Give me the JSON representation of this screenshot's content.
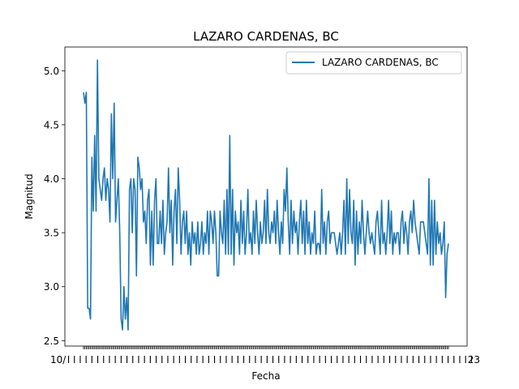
{
  "chart_data": {
    "type": "line",
    "title": "LAZARO CARDENAS, BC",
    "xlabel": "Fecha",
    "ylabel": "Magnitud",
    "ylim": [
      2.45,
      5.22
    ],
    "yticks": [
      "2.5",
      "3.0",
      "3.5",
      "4.0",
      "4.5",
      "5.0"
    ],
    "ytick_values": [
      2.5,
      3.0,
      3.5,
      4.0,
      4.5,
      5.0
    ],
    "xtick_left_label": "10/",
    "xtick_right_label": "23",
    "grid": false,
    "legend_position": "top-right",
    "colors": {
      "series": "#1f77b4"
    },
    "series": [
      {
        "name": "LAZARO CARDENAS, BC",
        "values": [
          4.8,
          4.7,
          4.8,
          2.8,
          2.8,
          2.7,
          4.2,
          3.7,
          4.4,
          3.7,
          5.1,
          4.0,
          3.9,
          3.8,
          4.0,
          4.1,
          3.8,
          4.0,
          3.9,
          3.6,
          4.6,
          4.0,
          4.7,
          3.6,
          3.8,
          4.0,
          3.5,
          2.7,
          2.6,
          3.0,
          2.7,
          2.9,
          2.6,
          3.9,
          4.0,
          3.5,
          4.0,
          3.9,
          3.1,
          4.2,
          4.1,
          3.9,
          4.0,
          3.6,
          3.7,
          3.4,
          3.8,
          3.9,
          3.2,
          3.7,
          3.2,
          3.8,
          4.0,
          3.4,
          3.4,
          3.7,
          3.4,
          3.8,
          3.3,
          3.5,
          3.6,
          4.1,
          3.5,
          3.8,
          3.2,
          3.7,
          3.9,
          3.4,
          4.1,
          3.8,
          3.3,
          3.6,
          3.7,
          3.4,
          3.7,
          3.3,
          3.5,
          3.2,
          3.6,
          3.4,
          3.5,
          3.3,
          3.6,
          3.3,
          3.4,
          3.6,
          3.3,
          3.5,
          3.4,
          3.7,
          3.3,
          3.7,
          3.6,
          3.4,
          3.7,
          3.5,
          3.1,
          3.1,
          3.7,
          3.5,
          3.4,
          3.8,
          3.3,
          3.9,
          3.3,
          4.4,
          3.3,
          3.9,
          3.2,
          3.7,
          3.5,
          3.6,
          3.3,
          3.8,
          3.4,
          3.7,
          3.3,
          3.5,
          3.9,
          3.4,
          3.5,
          3.3,
          3.7,
          3.4,
          3.8,
          3.5,
          3.3,
          3.6,
          3.4,
          3.5,
          3.8,
          3.4,
          3.9,
          3.5,
          3.4,
          3.6,
          3.5,
          3.7,
          3.4,
          3.8,
          3.5,
          3.3,
          3.6,
          3.4,
          3.9,
          3.7,
          4.1,
          3.6,
          3.3,
          3.8,
          3.4,
          3.7,
          3.5,
          3.6,
          3.3,
          3.6,
          3.8,
          3.4,
          3.7,
          3.3,
          3.8,
          3.4,
          3.6,
          3.3,
          3.5,
          3.4,
          3.7,
          3.3,
          3.4,
          3.4,
          3.3,
          3.9,
          3.4,
          3.6,
          3.3,
          3.6,
          3.7,
          3.4,
          3.5,
          3.5,
          3.5,
          3.4,
          3.3,
          3.4,
          3.5,
          3.3,
          3.5,
          3.8,
          3.3,
          4.0,
          3.4,
          3.9,
          3.5,
          3.4,
          3.8,
          3.2,
          3.7,
          3.3,
          3.6,
          3.4,
          3.8,
          3.5,
          3.3,
          3.5,
          3.7,
          3.5,
          3.4,
          3.5,
          3.4,
          3.3,
          3.6,
          3.7,
          3.5,
          3.3,
          3.8,
          3.4,
          3.5,
          3.3,
          3.5,
          3.8,
          3.4,
          3.7,
          3.3,
          3.5,
          3.4,
          3.5,
          3.5,
          3.3,
          3.6,
          3.7,
          3.4,
          3.6,
          3.5,
          3.3,
          3.6,
          3.7,
          3.5,
          3.8,
          3.6,
          3.5,
          3.4,
          3.3,
          3.6,
          3.6,
          3.6,
          3.5,
          3.4,
          3.3,
          4.0,
          3.2,
          3.8,
          3.2,
          3.8,
          3.3,
          3.6,
          3.4,
          3.5,
          3.3,
          3.4,
          3.6,
          2.9,
          3.3,
          3.4
        ]
      }
    ]
  }
}
